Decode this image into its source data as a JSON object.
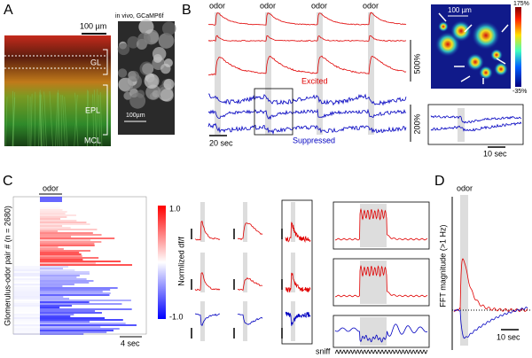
{
  "panels": {
    "a": {
      "label": "A",
      "scale_top": "100 µm",
      "inset_title": "in vivo, GCaMP6f",
      "layers": [
        "GL",
        "EPL",
        "MCL"
      ],
      "inset_scale": "100µm"
    },
    "b": {
      "label": "B",
      "odor": [
        "odor",
        "odor",
        "odor",
        "odor"
      ],
      "excited": "Excited",
      "suppressed": "Suppressed",
      "scale_excited": "500%",
      "scale_suppressed": "200%",
      "time_scale": "20 sec",
      "map_scale": "100 µm",
      "colorbar": [
        "175%",
        "-35%"
      ],
      "inset_time_scale": "10 sec"
    },
    "c": {
      "label": "C",
      "odor": "odor",
      "y_label": "Glomerulus-odor pair # (n = 2680)",
      "time_scale": "4 sec",
      "colorbar": [
        "1.0",
        "-1.0"
      ],
      "colorbar_label": "Normlized df/f",
      "sniff": "sniff"
    },
    "d": {
      "label": "D",
      "odor": "odor",
      "y_label": "FFT magnitude (>1 Hz)",
      "time_scale": "10 sec"
    }
  }
}
